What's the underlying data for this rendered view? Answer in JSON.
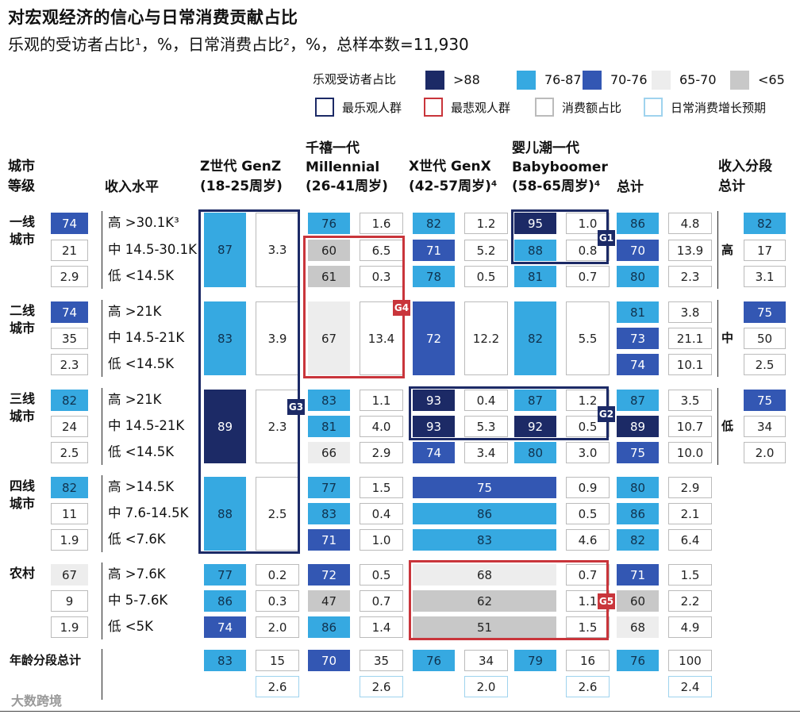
{
  "title": "对宏观经济的信心与日常消费贡献占比",
  "subtitle": "乐观的受访者占比¹，%，日常消费占比²，%，总样本数=11,930",
  "legend": {
    "heading": "乐观受访者占比",
    "items": [
      {
        "label": ">88",
        "color": "#1c2a66"
      },
      {
        "label": "76-87",
        "color": "#36a9e1"
      },
      {
        "label": "70-76",
        "color": "#3357b3"
      },
      {
        "label": "65-70",
        "color": "#ededed"
      },
      {
        "label": "<65",
        "color": "#c8c8c8"
      }
    ],
    "boxes": [
      {
        "label": "最乐观人群",
        "color": "#1c2a66"
      },
      {
        "label": "最悲观人群",
        "color": "#c9353b"
      },
      {
        "label": "消费额占比",
        "color": "#bbbbbb"
      },
      {
        "label": "日常消费增长预期",
        "color": "#9fd3ee"
      }
    ]
  },
  "headers": {
    "city_l1": "城市",
    "city_l2": "等级",
    "income": "收入水平",
    "genz_l1": "Z世代 GenZ",
    "genz_l2": "(18-25周岁)",
    "mil_l0": "千禧一代",
    "mil_l1": "Millennial",
    "mil_l2": "(26-41周岁)",
    "genx_l1": "X世代 GenX",
    "genx_l2": "(42-57周岁)⁴",
    "boom_l0": "婴儿潮一代",
    "boom_l1": "Babyboomer",
    "boom_l2": "(58-65周岁)⁴",
    "total": "总计",
    "bracket_l1": "收入分段",
    "bracket_l2": "总计"
  },
  "city_labels": [
    {
      "l1": "一线",
      "l2": "城市"
    },
    {
      "l1": "二线",
      "l2": "城市"
    },
    {
      "l1": "三线",
      "l2": "城市"
    },
    {
      "l1": "四线",
      "l2": "城市"
    },
    {
      "l1": "农村",
      "l2": ""
    }
  ],
  "age_total_label": "年龄分段总计",
  "bracket_labels": [
    "高",
    "中",
    "低"
  ],
  "group_tags": [
    "G1",
    "G2",
    "G3",
    "G4",
    "G5"
  ],
  "watermark": "大数跨境",
  "chart_data": {
    "type": "table",
    "columns": [
      "城市等级/收入水平",
      "Z世代 GenZ",
      "Millennial",
      "X世代 GenX",
      "Babyboomer",
      "总计",
      "收入分段总计"
    ],
    "rows": [
      {
        "city": "一线城市",
        "share": "74",
        "income": "高 >30.1K³",
        "genz": {
          "opt": 87,
          "cons": "3.3"
        },
        "mil": {
          "opt": 76,
          "cons": "1.6"
        },
        "genx": {
          "opt": 82,
          "cons": "1.2"
        },
        "boom": {
          "opt": 95,
          "cons": "1.0"
        },
        "total": {
          "opt": 86,
          "cons": "4.8"
        }
      },
      {
        "city": "一线城市",
        "share": "21",
        "income": "中 14.5-30.1K",
        "genz": {
          "opt": 87,
          "cons": "3.3"
        },
        "mil": {
          "opt": 60,
          "cons": "6.5"
        },
        "genx": {
          "opt": 71,
          "cons": "5.2"
        },
        "boom": {
          "opt": 88,
          "cons": "0.8"
        },
        "total": {
          "opt": 70,
          "cons": "13.9"
        }
      },
      {
        "city": "一线城市",
        "share": "2.9",
        "income": "低 <14.5K",
        "genz": {
          "opt": 87,
          "cons": "3.3"
        },
        "mil": {
          "opt": 61,
          "cons": "0.3"
        },
        "genx": {
          "opt": 78,
          "cons": "0.5"
        },
        "boom": {
          "opt": 81,
          "cons": "0.7"
        },
        "total": {
          "opt": 80,
          "cons": "2.3"
        }
      },
      {
        "city": "二线城市",
        "share": "74",
        "income": "高 >21K",
        "genz": {
          "opt": 83,
          "cons": "3.9"
        },
        "mil": {
          "opt": 67,
          "cons": "13.4"
        },
        "genx": {
          "opt": 72,
          "cons": "12.2"
        },
        "boom": {
          "opt": 82,
          "cons": "5.5"
        },
        "total": {
          "opt": 81,
          "cons": "3.8"
        }
      },
      {
        "city": "二线城市",
        "share": "35",
        "income": "中 14.5-21K",
        "genz": {
          "opt": 83,
          "cons": "3.9"
        },
        "mil": {
          "opt": 67,
          "cons": "13.4"
        },
        "genx": {
          "opt": 72,
          "cons": "12.2"
        },
        "boom": {
          "opt": 82,
          "cons": "5.5"
        },
        "total": {
          "opt": 73,
          "cons": "21.1"
        }
      },
      {
        "city": "二线城市",
        "share": "2.3",
        "income": "低 <14.5K",
        "genz": {
          "opt": 83,
          "cons": "3.9"
        },
        "mil": {
          "opt": 67,
          "cons": "13.4"
        },
        "genx": {
          "opt": 72,
          "cons": "12.2"
        },
        "boom": {
          "opt": 82,
          "cons": "5.5"
        },
        "total": {
          "opt": 74,
          "cons": "10.1"
        }
      },
      {
        "city": "三线城市",
        "share": "82",
        "income": "高 >21K",
        "genz": {
          "opt": 89,
          "cons": "2.3"
        },
        "mil": {
          "opt": 83,
          "cons": "1.1"
        },
        "genx": {
          "opt": 93,
          "cons": "0.4"
        },
        "boom": {
          "opt": 87,
          "cons": "1.2"
        },
        "total": {
          "opt": 87,
          "cons": "3.5"
        }
      },
      {
        "city": "三线城市",
        "share": "24",
        "income": "中 14.5-21K",
        "genz": {
          "opt": 89,
          "cons": "2.3"
        },
        "mil": {
          "opt": 81,
          "cons": "4.0"
        },
        "genx": {
          "opt": 93,
          "cons": "5.3"
        },
        "boom": {
          "opt": 92,
          "cons": "0.5"
        },
        "total": {
          "opt": 89,
          "cons": "10.7"
        }
      },
      {
        "city": "三线城市",
        "share": "2.5",
        "income": "低 <14.5K",
        "genz": {
          "opt": 89,
          "cons": "2.3"
        },
        "mil": {
          "opt": 66,
          "cons": "2.9"
        },
        "genx": {
          "opt": 74,
          "cons": "3.4"
        },
        "boom": {
          "opt": 80,
          "cons": "3.0"
        },
        "total": {
          "opt": 75,
          "cons": "10.0"
        }
      },
      {
        "city": "四线城市",
        "share": "82",
        "income": "高 >14.5K",
        "genz": {
          "opt": 88,
          "cons": "2.5"
        },
        "mil": {
          "opt": 77,
          "cons": "1.5"
        },
        "genx_boom": {
          "opt": 75
        },
        "boom": {
          "cons": "0.9"
        },
        "total": {
          "opt": 80,
          "cons": "2.9"
        }
      },
      {
        "city": "四线城市",
        "share": "11",
        "income": "中 7.6-14.5K",
        "genz": {
          "opt": 88,
          "cons": "2.5"
        },
        "mil": {
          "opt": 83,
          "cons": "0.4"
        },
        "genx_boom": {
          "opt": 86
        },
        "boom": {
          "cons": "0.5"
        },
        "total": {
          "opt": 86,
          "cons": "2.1"
        }
      },
      {
        "city": "四线城市",
        "share": "1.9",
        "income": "低 <7.6K",
        "genz": {
          "opt": 88,
          "cons": "2.5"
        },
        "mil": {
          "opt": 71,
          "cons": "1.0"
        },
        "genx_boom": {
          "opt": 83
        },
        "boom": {
          "cons": "4.6"
        },
        "total": {
          "opt": 82,
          "cons": "6.4"
        }
      },
      {
        "city": "农村",
        "share": "67",
        "income": "高 >7.6K",
        "genz": {
          "opt": 77,
          "cons": "0.2"
        },
        "mil": {
          "opt": 72,
          "cons": "0.5"
        },
        "genx_boom": {
          "opt": 68
        },
        "boom": {
          "cons": "0.7"
        },
        "total": {
          "opt": 71,
          "cons": "1.5"
        }
      },
      {
        "city": "农村",
        "share": "9",
        "income": "中 5-7.6K",
        "genz": {
          "opt": 86,
          "cons": "0.3"
        },
        "mil": {
          "opt": 47,
          "cons": "0.7"
        },
        "genx_boom": {
          "opt": 62
        },
        "boom": {
          "cons": "1.1"
        },
        "total": {
          "opt": 60,
          "cons": "2.2"
        }
      },
      {
        "city": "农村",
        "share": "1.9",
        "income": "低 <5K",
        "genz": {
          "opt": 74,
          "cons": "2.0"
        },
        "mil": {
          "opt": 86,
          "cons": "1.4"
        },
        "genx_boom": {
          "opt": 51
        },
        "boom": {
          "cons": "1.5"
        },
        "total": {
          "opt": 68,
          "cons": "4.9"
        }
      }
    ],
    "income_bracket_totals": [
      {
        "bracket": "高",
        "values": [
          "82",
          "17",
          "3.1"
        ]
      },
      {
        "bracket": "中",
        "values": [
          "75",
          "50",
          "2.5"
        ]
      },
      {
        "bracket": "低",
        "values": [
          "75",
          "34",
          "2.0"
        ]
      }
    ],
    "age_totals": {
      "genz": {
        "opt": 83,
        "cons": "15",
        "growth": "2.6"
      },
      "mil": {
        "opt": 70,
        "cons": "35",
        "growth": "2.6"
      },
      "genx": {
        "opt": 76,
        "cons": "34",
        "growth": "2.0"
      },
      "boom": {
        "opt": 79,
        "cons": "16",
        "growth": "2.6"
      },
      "total": {
        "opt": 76,
        "cons": "100",
        "growth": "2.4"
      }
    }
  }
}
